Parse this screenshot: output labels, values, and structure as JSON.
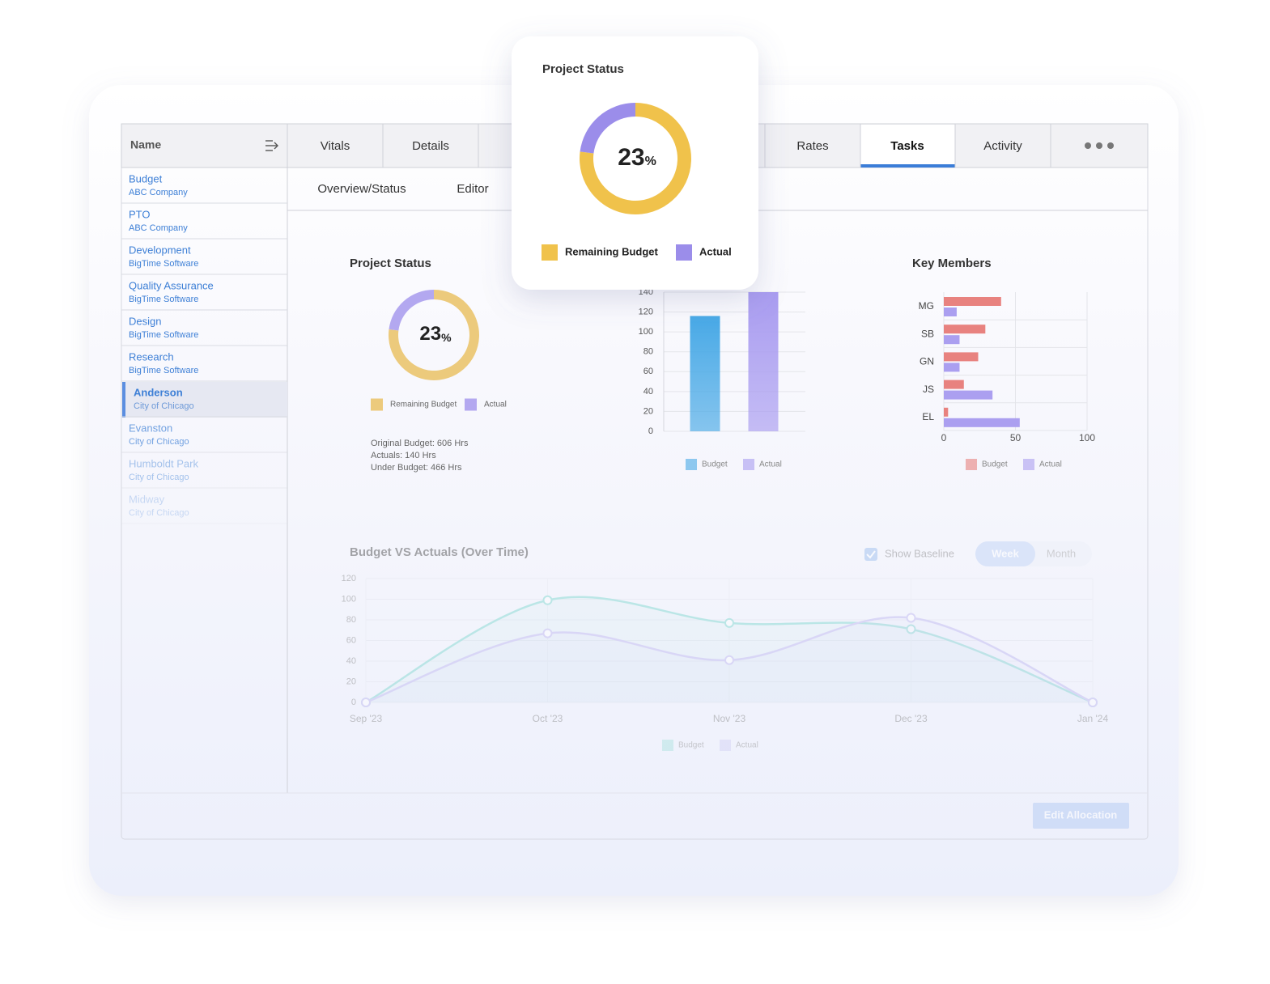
{
  "sidebar": {
    "header": "Name",
    "items": [
      {
        "name": "Budget",
        "client": "ABC Company"
      },
      {
        "name": "PTO",
        "client": "ABC Company"
      },
      {
        "name": "Development",
        "client": "BigTime Software"
      },
      {
        "name": "Quality Assurance",
        "client": "BigTime Software"
      },
      {
        "name": "Design",
        "client": "BigTime Software"
      },
      {
        "name": "Research",
        "client": "BigTime Software"
      },
      {
        "name": "Anderson",
        "client": "City of Chicago"
      },
      {
        "name": "Evanston",
        "client": "City of Chicago"
      },
      {
        "name": "Humboldt Park",
        "client": "City of Chicago"
      },
      {
        "name": "Midway",
        "client": "City of Chicago"
      }
    ]
  },
  "tabs": [
    "Vitals",
    "Details",
    "Rates",
    "Tasks",
    "Activity"
  ],
  "subtabs": [
    "Overview/Status",
    "Editor"
  ],
  "controls": {
    "show_baseline": "Show Baseline",
    "periods": [
      "Week",
      "Month"
    ]
  },
  "button": "Edit Allocation",
  "chart_data": [
    {
      "type": "pie",
      "title": "Project Status",
      "unit": "%",
      "series": [
        {
          "name": "Remaining Budget",
          "color": "#ecca7c",
          "value": 77
        },
        {
          "name": "Actual",
          "color": "#b3a8f0",
          "value": 23
        }
      ],
      "notes": [
        "Original Budget: 606 Hrs",
        "Actuals: 140 Hrs",
        "Under Budget: 466 Hrs"
      ]
    },
    {
      "type": "bar",
      "series": [
        {
          "name": "Budget",
          "color": "#48a9e6",
          "values": [
            116
          ]
        },
        {
          "name": "Actual",
          "color": "#a99cf0",
          "values": [
            140
          ]
        }
      ],
      "ylim": [
        0,
        140
      ],
      "yticks": [
        0,
        20,
        40,
        60,
        80,
        100,
        120,
        140
      ],
      "grid": true
    },
    {
      "type": "hbar",
      "title": "Key Members",
      "categories": [
        "MG",
        "SB",
        "GN",
        "JS",
        "EL"
      ],
      "series": [
        {
          "name": "Budget",
          "color": "#e8827f",
          "values": [
            40,
            29,
            24,
            14,
            3
          ]
        },
        {
          "name": "Actual",
          "color": "#ab9ff0",
          "values": [
            9,
            11,
            11,
            34,
            53
          ]
        }
      ],
      "xlim": [
        0,
        100
      ],
      "xticks": [
        0,
        50,
        100
      ],
      "grid": true
    },
    {
      "type": "line",
      "title": "Budget VS Actuals (Over Time)",
      "categories": [
        "Sep '23",
        "Oct '23",
        "Nov '23",
        "Dec '23",
        "Jan '24"
      ],
      "series": [
        {
          "name": "Budget",
          "color": "#6fd3c8",
          "values": [
            0,
            99,
            77,
            71,
            0
          ]
        },
        {
          "name": "Actual",
          "color": "#b8b0ee",
          "values": [
            0,
            67,
            41,
            82,
            0
          ]
        }
      ],
      "ylim": [
        0,
        120
      ],
      "yticks": [
        0,
        20,
        40,
        60,
        80,
        100,
        120
      ],
      "grid": true
    },
    {
      "type": "pie",
      "title": "Project Status",
      "unit": "%",
      "series": [
        {
          "name": "Remaining Budget",
          "color": "#f0c24b",
          "value": 77
        },
        {
          "name": "Actual",
          "color": "#9b8dea",
          "value": 23
        }
      ]
    }
  ]
}
